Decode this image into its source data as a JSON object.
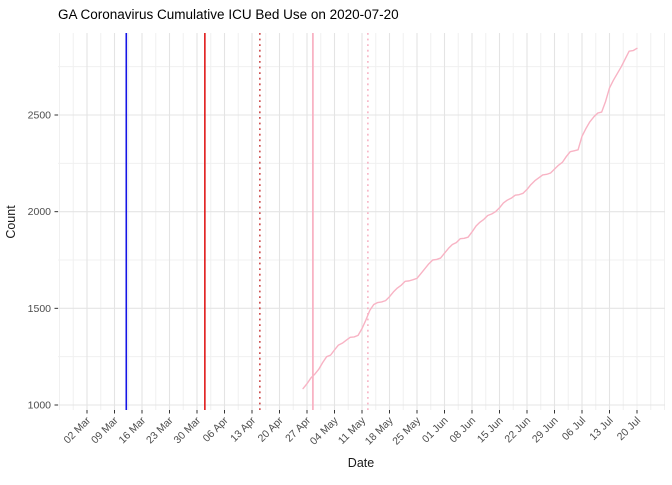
{
  "title": "GA Coronavirus Cumulative ICU Bed Use on 2020-07-20",
  "chart_data": {
    "type": "line",
    "title": "GA Coronavirus Cumulative ICU Bed Use on 2020-07-20",
    "xlabel": "Date",
    "ylabel": "Count",
    "x_tick_labels": [
      "02 Mar",
      "09 Mar",
      "16 Mar",
      "23 Mar",
      "30 Mar",
      "06 Apr",
      "13 Apr",
      "20 Apr",
      "27 Apr",
      "04 May",
      "11 May",
      "18 May",
      "25 May",
      "01 Jun",
      "08 Jun",
      "15 Jun",
      "22 Jun",
      "29 Jun",
      "06 Jul",
      "13 Jul",
      "20 Jul"
    ],
    "x_tick_start_date": "2020-03-02",
    "x_tick_interval_days": 7,
    "y_tick_labels": [
      "1000",
      "1500",
      "2000",
      "2500"
    ],
    "y_major_gridlines": [
      1000,
      1500,
      2000,
      2500
    ],
    "y_minor_gridlines": [
      1250,
      1750,
      2250,
      2750
    ],
    "ylim": [
      975,
      2925
    ],
    "grid": true,
    "legend_position": "none",
    "series": [
      {
        "name": "cumulative-icu-bed-use",
        "color": "#F8B3C4",
        "start_date": "2020-04-26",
        "end_date": "2020-07-20",
        "start_day_offset_from_2020-03-02": 55,
        "daily_values": [
          1085,
          1110,
          1140,
          1160,
          1185,
          1220,
          1250,
          1258,
          1285,
          1310,
          1320,
          1335,
          1350,
          1352,
          1360,
          1395,
          1440,
          1490,
          1520,
          1530,
          1533,
          1540,
          1560,
          1585,
          1605,
          1620,
          1640,
          1642,
          1648,
          1655,
          1680,
          1705,
          1730,
          1750,
          1753,
          1760,
          1785,
          1810,
          1830,
          1840,
          1860,
          1862,
          1868,
          1895,
          1925,
          1945,
          1960,
          1980,
          1988,
          2000,
          2020,
          2045,
          2060,
          2070,
          2085,
          2088,
          2095,
          2115,
          2140,
          2160,
          2175,
          2190,
          2193,
          2200,
          2220,
          2240,
          2255,
          2285,
          2310,
          2315,
          2320,
          2390,
          2430,
          2465,
          2490,
          2510,
          2515,
          2570,
          2640,
          2680,
          2715,
          2750,
          2790,
          2830,
          2833,
          2845
        ]
      }
    ],
    "reference_lines": [
      {
        "name": "blue-solid-vline",
        "approx_date": "2020-03-12",
        "day_offset": 10,
        "color": "#1414E6",
        "style": "solid",
        "width": 1.6
      },
      {
        "name": "red-solid-vline",
        "approx_date": "2020-04-01",
        "day_offset": 30,
        "color": "#E01A1A",
        "style": "solid",
        "width": 1.6
      },
      {
        "name": "red-dotted-vline",
        "approx_date": "2020-04-15",
        "day_offset": 44,
        "color": "#C43030",
        "style": "dotted",
        "width": 1.4
      },
      {
        "name": "pink-solid-vline",
        "approx_date": "2020-04-28",
        "day_offset": 57.5,
        "color": "#F8B3C4",
        "style": "solid",
        "width": 1.8
      },
      {
        "name": "pink-dotted-vline",
        "approx_date": "2020-05-12",
        "day_offset": 71.5,
        "color": "#F6A8BC",
        "style": "dotted",
        "width": 1.4
      }
    ]
  }
}
